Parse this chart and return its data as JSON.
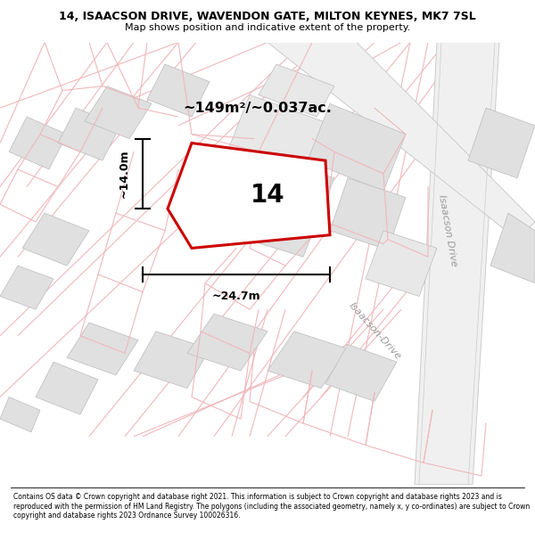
{
  "title": "14, ISAACSON DRIVE, WAVENDON GATE, MILTON KEYNES, MK7 7SL",
  "subtitle": "Map shows position and indicative extent of the property.",
  "footer": "Contains OS data © Crown copyright and database right 2021. This information is subject to Crown copyright and database rights 2023 and is reproduced with the permission of HM Land Registry. The polygons (including the associated geometry, namely x, y co-ordinates) are subject to Crown copyright and database rights 2023 Ordnance Survey 100026316.",
  "map_bg": "#ffffff",
  "property_color": "#cc0000",
  "property_label": "14",
  "area_label": "~149m²/~0.037ac.",
  "width_label": "~24.7m",
  "height_label": "~14.0m",
  "road_label_1": "Isaacson Drive",
  "road_label_2": "Isaacson-Drive",
  "pink": "#f0b8bc",
  "gray_fill": "#e0e0e0",
  "gray_edge": "#bbbbbb",
  "road_gray": "#cccccc"
}
